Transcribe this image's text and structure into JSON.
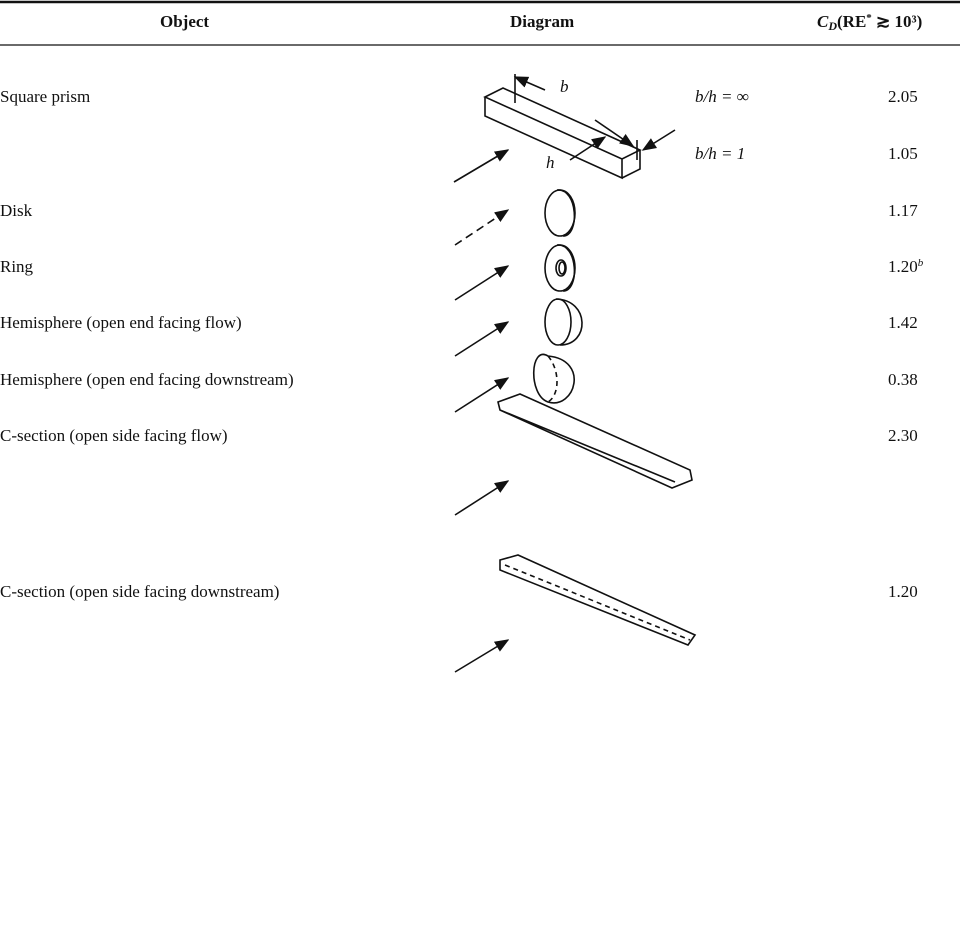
{
  "header": {
    "columns": [
      "Object",
      "Diagram",
      {
        "symbol": "C",
        "subscript": "D",
        "open": "(RE",
        "star": "*",
        "rest": " ≳ 10³)"
      }
    ]
  },
  "rows": [
    {
      "object": "Square prism",
      "diagram_labels": [
        "b",
        "h"
      ],
      "conditions": [
        "b/h = ∞",
        "b/h = 1"
      ],
      "values": [
        "2.05",
        "1.05"
      ]
    },
    {
      "object": "Disk",
      "values": [
        "1.17"
      ]
    },
    {
      "object": "Ring",
      "values": [
        "1.20"
      ],
      "note": "b"
    },
    {
      "object": "Hemisphere (open end facing flow)",
      "values": [
        "1.42"
      ]
    },
    {
      "object": "Hemisphere (open end facing downstream)",
      "values": [
        "0.38"
      ]
    },
    {
      "object": "C-section (open side facing flow)",
      "values": [
        "2.30"
      ]
    },
    {
      "object": "C-section (open side facing downstream)",
      "values": [
        "1.20"
      ]
    }
  ]
}
